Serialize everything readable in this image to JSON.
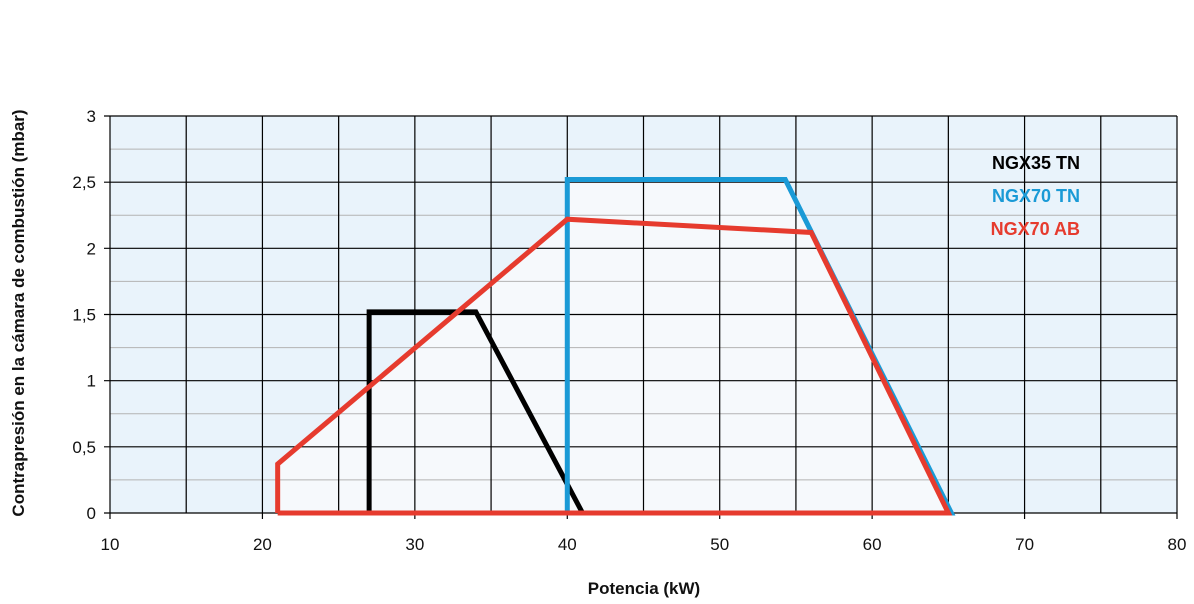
{
  "chart_data": {
    "type": "area",
    "xlabel": "Potencia (kW)",
    "ylabel": "Contrapresión en la cámara de combustión (mbar)",
    "xlim": [
      10,
      80
    ],
    "ylim": [
      0,
      3
    ],
    "x_ticks": [
      10,
      20,
      30,
      40,
      50,
      60,
      70,
      80
    ],
    "y_ticks": [
      0,
      0.5,
      1,
      1.5,
      2,
      2.5,
      3
    ],
    "x_tick_labels": [
      "10",
      "20",
      "30",
      "40",
      "50",
      "60",
      "70",
      "80"
    ],
    "y_tick_labels": [
      "0",
      "0,5",
      "1",
      "1,5",
      "2",
      "2,5",
      "3"
    ],
    "x_minor_step": 5,
    "y_minor_step": 0.25,
    "grid": true,
    "legend_position": "top-right",
    "colors": {
      "plot_bg": "#e9f3fb",
      "fill": "#f6f9fc",
      "major_grid": "#000000",
      "minor_grid": "#b3b3b3"
    },
    "series": [
      {
        "name": "NGX35 TN",
        "color": "#000000",
        "points": [
          [
            27,
            0
          ],
          [
            27,
            1.52
          ],
          [
            34,
            1.52
          ],
          [
            41,
            0
          ]
        ]
      },
      {
        "name": "NGX70 TN",
        "color": "#1a9ad6",
        "points": [
          [
            40,
            0
          ],
          [
            40,
            2.52
          ],
          [
            54.3,
            2.52
          ],
          [
            65.2,
            0
          ],
          [
            40,
            0
          ]
        ]
      },
      {
        "name": "NGX70 AB",
        "color": "#e63b2e",
        "points": [
          [
            21,
            0
          ],
          [
            21,
            0.37
          ],
          [
            40,
            2.22
          ],
          [
            56,
            2.12
          ],
          [
            65,
            0
          ],
          [
            21,
            0
          ]
        ]
      }
    ]
  }
}
